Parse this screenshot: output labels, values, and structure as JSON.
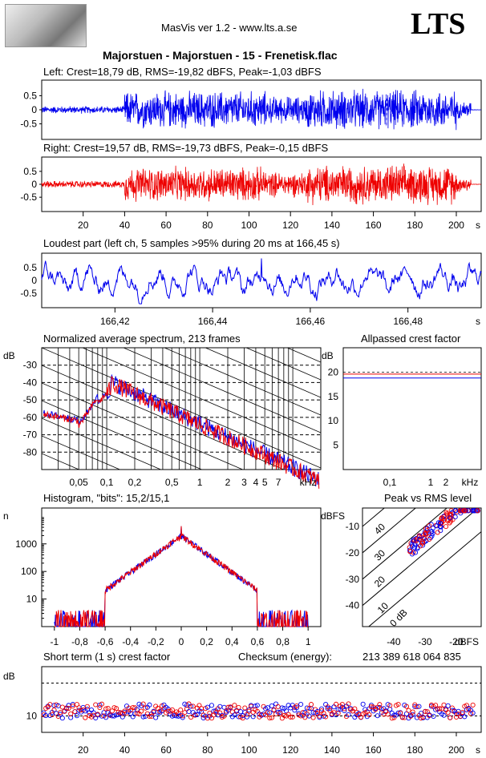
{
  "header": {
    "app_title": "MasVis ver 1.2 - www.lts.a.se",
    "logo_text": "LTS",
    "file_title": "Majorstuen - Majorstuen - 15 - Frenetisk.flac"
  },
  "colors": {
    "left": "#0000ee",
    "right": "#ee0000"
  },
  "chart_data": [
    {
      "id": "waveform_left",
      "type": "line",
      "title": "Left: Crest=18,79 dB, RMS=-19,82 dBFS, Peak=-1,03 dBFS",
      "yticks": [
        "0.5",
        "0",
        "-0.5"
      ],
      "ylim": [
        -1,
        1
      ],
      "xlim": [
        0,
        212
      ],
      "peak_marker_s": 166.45,
      "envelope_segments": [
        {
          "x0": 0,
          "x1": 40,
          "amp": 0.15
        },
        {
          "x0": 40,
          "x1": 108,
          "amp": 0.75
        },
        {
          "x0": 108,
          "x1": 128,
          "amp": 0.55
        },
        {
          "x0": 128,
          "x1": 200,
          "amp": 0.8
        },
        {
          "x0": 200,
          "x1": 207,
          "amp": 0.35
        }
      ]
    },
    {
      "id": "waveform_right",
      "type": "line",
      "title": "Right: Crest=19,57 dB, RMS=-19,73 dBFS, Peak=-0,15 dBFS",
      "yticks": [
        "0.5",
        "0",
        "-0.5"
      ],
      "ylim": [
        -1,
        1
      ],
      "xlim": [
        0,
        212
      ],
      "xticks": [
        "20",
        "40",
        "60",
        "80",
        "100",
        "120",
        "140",
        "160",
        "180",
        "200"
      ],
      "xunit": "s",
      "envelope_segments": [
        {
          "x0": 0,
          "x1": 40,
          "amp": 0.15
        },
        {
          "x0": 40,
          "x1": 108,
          "amp": 0.75
        },
        {
          "x0": 108,
          "x1": 128,
          "amp": 0.55
        },
        {
          "x0": 128,
          "x1": 200,
          "amp": 0.85
        },
        {
          "x0": 200,
          "x1": 207,
          "amp": 0.35
        }
      ]
    },
    {
      "id": "loudest_part",
      "type": "line",
      "title": "Loudest part (left  ch, 5 samples >95% during 20 ms at 166,45 s)",
      "yticks": [
        "0.5",
        "0",
        "-0.5"
      ],
      "xticks": [
        "166,42",
        "166,44",
        "166,46",
        "166,48"
      ],
      "xunit": "s",
      "ylim": [
        -1,
        1
      ],
      "xlim": [
        166.405,
        166.495
      ]
    },
    {
      "id": "spectrum",
      "type": "line",
      "title": "Normalized average spectrum, 213 frames",
      "ylabel": "dB",
      "yticks": [
        "-30",
        "-40",
        "-50",
        "-60",
        "-70",
        "-80"
      ],
      "xticks": [
        "0,05",
        "0,1",
        "0,2",
        "0,5",
        "1",
        "2",
        "3",
        "4",
        "5",
        "7"
      ],
      "xunit": "kHz",
      "ylim": [
        -90,
        -20
      ],
      "xlim": [
        0.02,
        20
      ]
    },
    {
      "id": "allpassed_crest",
      "type": "line",
      "title": "Allpassed crest factor",
      "ylabel": "dB",
      "yticks": [
        "20",
        "15",
        "10",
        "5"
      ],
      "xticks": [
        "0,1",
        "1",
        "2",
        "kHz"
      ],
      "ylim": [
        0,
        25
      ],
      "left_value_db": 18.8,
      "right_value_db": 19.6
    },
    {
      "id": "histogram",
      "type": "line",
      "title": "Histogram, \"bits\": 15,2/15,1",
      "ylabel": "n",
      "yticks": [
        "1000",
        "100",
        "10"
      ],
      "xticks": [
        "-1",
        "-0,8",
        "-0,6",
        "-0,4",
        "-0,2",
        "0",
        "0,2",
        "0,4",
        "0,6",
        "0,8",
        "1"
      ],
      "xlim": [
        -1.1,
        1.1
      ],
      "ylim_log": [
        1,
        20000
      ],
      "peak_count": 2000
    },
    {
      "id": "peak_vs_rms",
      "type": "scatter",
      "title": "Peak vs RMS level",
      "ylabel": "dBFS",
      "xlabel": "dBFS",
      "yticks": [
        "-10",
        "-20",
        "-30",
        "-40"
      ],
      "xticks": [
        "-40",
        "-30",
        "-20"
      ],
      "diagonal_labels": [
        "40",
        "30",
        "20",
        "10",
        "0 dB"
      ],
      "xlim": [
        -50,
        -12
      ],
      "ylim": [
        -48,
        -3
      ]
    },
    {
      "id": "short_term_crest",
      "type": "scatter",
      "title": "Short term (1 s) crest factor",
      "checksum_label": "Checksum (energy):",
      "checksum_value": "213 389 618 064 835",
      "ylabel": "dB",
      "yticks": [
        "10"
      ],
      "xticks": [
        "20",
        "40",
        "60",
        "80",
        "100",
        "120",
        "140",
        "160",
        "180",
        "200"
      ],
      "xunit": "s",
      "xlim": [
        0,
        212
      ],
      "ylim": [
        5,
        25
      ]
    }
  ]
}
